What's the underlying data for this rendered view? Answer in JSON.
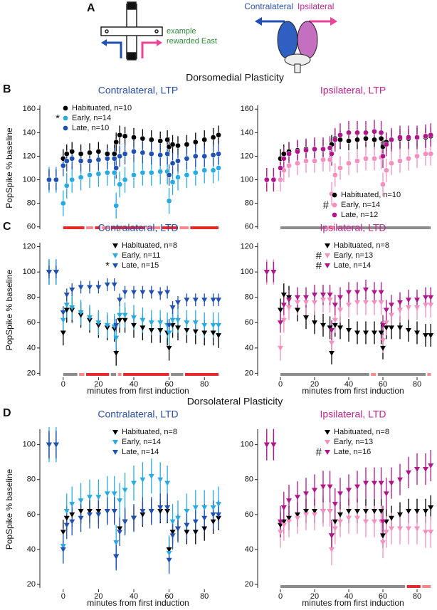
{
  "panel_a": {
    "label": "A",
    "caption": [
      "example",
      "rewarded East"
    ],
    "contralateral": "Contralateral",
    "ipsilateral": "Ipsilateral"
  },
  "chart_data": [
    {
      "type": "line",
      "panel": "B",
      "section": "Dorsomedial Plasticity",
      "title": "Contralateral, LTP",
      "title_color": "#2a4fa8",
      "ylabel": "PopSpike % baseline",
      "marker": "circle",
      "legend": "upper left",
      "x": [
        -8,
        -4,
        0,
        2,
        5,
        10,
        15,
        20,
        25,
        29,
        30,
        32,
        35,
        40,
        45,
        50,
        55,
        59,
        60,
        62,
        65,
        70,
        75,
        80,
        85,
        88
      ],
      "xlim": [
        -10,
        90
      ],
      "ylim": [
        58,
        162
      ],
      "yticks": [
        60,
        80,
        100,
        120,
        140,
        160
      ],
      "series": [
        {
          "name": "Habituated, n=10",
          "color": "#000000",
          "error": 8,
          "values": [
            100,
            100,
            118,
            122,
            124,
            122,
            123,
            124,
            122,
            122,
            132,
            138,
            137,
            136,
            135,
            134,
            133,
            134,
            128,
            130,
            129,
            130,
            132,
            134,
            136,
            138
          ]
        },
        {
          "name": "Early, n=14",
          "color": "#29abe2",
          "flag": "*",
          "error": 11,
          "values": [
            100,
            100,
            80,
            95,
            100,
            102,
            104,
            105,
            106,
            106,
            78,
            96,
            100,
            104,
            106,
            106,
            107,
            107,
            82,
            98,
            102,
            104,
            106,
            108,
            108,
            110
          ]
        },
        {
          "name": "Late, n=10",
          "color": "#2050b0",
          "error": 9,
          "values": [
            100,
            100,
            112,
            116,
            118,
            116,
            116,
            117,
            118,
            118,
            110,
            120,
            122,
            124,
            123,
            122,
            121,
            122,
            104,
            114,
            116,
            118,
            120,
            120,
            121,
            122
          ]
        }
      ],
      "sig_bars": [
        {
          "x": [
            0,
            12
          ],
          "color": "#e8282f"
        },
        {
          "x": [
            13,
            17
          ],
          "color": "#f4888a"
        },
        {
          "x": [
            18,
            21
          ],
          "color": "#e8282f"
        },
        {
          "x": [
            22,
            26
          ],
          "color": "#f4888a"
        },
        {
          "x": [
            27,
            46
          ],
          "color": "#e8282f"
        },
        {
          "x": [
            47,
            55
          ],
          "color": "#f4888a"
        },
        {
          "x": [
            56,
            65
          ],
          "color": "#e8282f"
        },
        {
          "x": [
            66,
            71
          ],
          "color": "#f4888a"
        },
        {
          "x": [
            72,
            88
          ],
          "color": "#e8282f"
        }
      ]
    },
    {
      "type": "line",
      "title": "Ipsilateral, LTP",
      "title_color": "#c0268f",
      "marker": "circle",
      "legend": "lower right",
      "x": [
        -8,
        -4,
        0,
        2,
        5,
        10,
        15,
        20,
        25,
        29,
        30,
        32,
        35,
        40,
        45,
        50,
        55,
        59,
        60,
        62,
        65,
        70,
        75,
        80,
        85,
        88
      ],
      "xlim": [
        -10,
        90
      ],
      "ylim": [
        58,
        162
      ],
      "yticks": [
        60,
        80,
        100,
        120,
        140,
        160
      ],
      "series": [
        {
          "name": "Habituated, n=10",
          "color": "#000000",
          "error": 8,
          "values": [
            100,
            100,
            118,
            122,
            124,
            125,
            126,
            126,
            126,
            127,
            130,
            135,
            134,
            133,
            134,
            135,
            134,
            135,
            128,
            132,
            134,
            135,
            135,
            136,
            136,
            137
          ]
        },
        {
          "name": "Early, n=14",
          "color": "#f48fc0",
          "flag": "#",
          "error": 10,
          "values": [
            100,
            100,
            100,
            108,
            112,
            114,
            116,
            116,
            117,
            117,
            88,
            104,
            110,
            114,
            116,
            118,
            118,
            119,
            96,
            108,
            114,
            116,
            118,
            120,
            122,
            122
          ]
        },
        {
          "name": "Late, n=12",
          "color": "#b0168a",
          "error": 10,
          "values": [
            100,
            100,
            110,
            118,
            122,
            124,
            125,
            126,
            126,
            127,
            122,
            134,
            138,
            140,
            140,
            140,
            141,
            140,
            120,
            130,
            134,
            136,
            136,
            136,
            137,
            138
          ]
        }
      ],
      "sig_bars": [
        {
          "x": [
            0,
            27
          ],
          "color": "#8c8c8c"
        },
        {
          "x": [
            28,
            32
          ],
          "color": "#f4888a"
        },
        {
          "x": [
            33,
            88
          ],
          "color": "#8c8c8c"
        }
      ]
    },
    {
      "type": "line",
      "panel": "C",
      "title": "Contralateral, LTD",
      "title_color": "#2a4fa8",
      "ylabel": "PopSpike % baseline",
      "xlabel": "minutes from first induction",
      "marker": "triangle-down",
      "legend": "upper right",
      "x": [
        -8,
        -4,
        0,
        2,
        5,
        10,
        15,
        20,
        25,
        29,
        30,
        32,
        35,
        40,
        45,
        50,
        55,
        59,
        60,
        62,
        65,
        70,
        75,
        80,
        85,
        88
      ],
      "xlim": [
        -10,
        90
      ],
      "ylim": [
        18,
        122
      ],
      "yticks": [
        20,
        40,
        60,
        80,
        100,
        120
      ],
      "xticks": [
        0,
        20,
        40,
        60,
        80
      ],
      "series": [
        {
          "name": "Habituated, n=8",
          "color": "#000000",
          "error": 10,
          "values": [
            100,
            100,
            52,
            70,
            70,
            66,
            62,
            58,
            56,
            55,
            36,
            62,
            62,
            58,
            56,
            54,
            54,
            52,
            40,
            58,
            56,
            54,
            53,
            52,
            52,
            50
          ]
        },
        {
          "name": "Early, n=11",
          "color": "#29abe2",
          "error": 10,
          "values": [
            100,
            100,
            62,
            74,
            72,
            68,
            64,
            60,
            58,
            57,
            48,
            66,
            66,
            64,
            62,
            60,
            60,
            58,
            52,
            62,
            62,
            60,
            60,
            58,
            58,
            58
          ]
        },
        {
          "name": "Late, n=15",
          "color": "#2050b0",
          "flag": "*",
          "error": 5,
          "values": [
            100,
            100,
            68,
            82,
            86,
            88,
            88,
            88,
            90,
            90,
            58,
            78,
            84,
            84,
            84,
            84,
            83,
            84,
            58,
            72,
            76,
            78,
            78,
            78,
            78,
            78
          ]
        }
      ],
      "sig_bars": [
        {
          "x": [
            0,
            8
          ],
          "color": "#8c8c8c"
        },
        {
          "x": [
            9,
            12
          ],
          "color": "#f4888a"
        },
        {
          "x": [
            13,
            26
          ],
          "color": "#e8282f"
        },
        {
          "x": [
            27,
            30
          ],
          "color": "#8c8c8c"
        },
        {
          "x": [
            31,
            33
          ],
          "color": "#f4888a"
        },
        {
          "x": [
            34,
            60
          ],
          "color": "#e8282f"
        },
        {
          "x": [
            61,
            68
          ],
          "color": "#8c8c8c"
        },
        {
          "x": [
            69,
            88
          ],
          "color": "#e8282f"
        }
      ]
    },
    {
      "type": "line",
      "title": "Ipsilateral, LTD",
      "title_color": "#c0268f",
      "xlabel": "minutes from first induction",
      "marker": "triangle-down",
      "legend": "upper right",
      "x": [
        -8,
        -4,
        0,
        2,
        5,
        10,
        15,
        20,
        25,
        29,
        30,
        32,
        35,
        40,
        45,
        50,
        55,
        59,
        60,
        62,
        65,
        70,
        75,
        80,
        85,
        88
      ],
      "xlim": [
        -10,
        90
      ],
      "ylim": [
        18,
        122
      ],
      "yticks": [
        20,
        40,
        60,
        80,
        100,
        120
      ],
      "xticks": [
        0,
        20,
        40,
        60,
        80
      ],
      "series": [
        {
          "name": "Habituated, n=8",
          "color": "#000000",
          "error": 9,
          "values": [
            100,
            100,
            70,
            82,
            80,
            70,
            64,
            60,
            58,
            56,
            36,
            58,
            56,
            54,
            52,
            52,
            52,
            52,
            40,
            56,
            56,
            56,
            54,
            52,
            50,
            50
          ]
        },
        {
          "name": "Early, n=13",
          "color": "#f48fc0",
          "flag": "#",
          "error": 10,
          "values": [
            100,
            100,
            40,
            62,
            72,
            76,
            76,
            76,
            78,
            78,
            44,
            62,
            70,
            74,
            76,
            76,
            76,
            76,
            46,
            60,
            66,
            70,
            72,
            72,
            74,
            74
          ]
        },
        {
          "name": "Late, n=14",
          "color": "#b0168a",
          "flag": "#",
          "error": 8,
          "values": [
            100,
            100,
            60,
            74,
            78,
            80,
            80,
            82,
            82,
            82,
            54,
            74,
            80,
            84,
            84,
            86,
            84,
            84,
            58,
            70,
            74,
            76,
            78,
            78,
            80,
            80
          ]
        }
      ],
      "sig_bars": [
        {
          "x": [
            0,
            52
          ],
          "color": "#8c8c8c"
        },
        {
          "x": [
            53,
            56
          ],
          "color": "#f4888a"
        },
        {
          "x": [
            57,
            85
          ],
          "color": "#8c8c8c"
        },
        {
          "x": [
            86,
            88
          ],
          "color": "#f4888a"
        }
      ]
    },
    {
      "type": "line",
      "panel": "D",
      "section": "Dorsolateral Plasticity",
      "title": "Contralateral, LTD",
      "title_color": "#2a4fa8",
      "ylabel": "PopSpike % baseline",
      "xlabel": "minutes from first induction",
      "marker": "triangle-down",
      "legend": "upper right",
      "x": [
        -8,
        -4,
        0,
        2,
        5,
        10,
        15,
        20,
        25,
        29,
        30,
        32,
        35,
        40,
        45,
        50,
        55,
        59,
        60,
        62,
        65,
        70,
        75,
        80,
        85,
        88
      ],
      "xlim": [
        -10,
        90
      ],
      "ylim": [
        18,
        108
      ],
      "yticks": [
        20,
        40,
        60,
        80,
        100
      ],
      "xticks": [
        0,
        20,
        40,
        60,
        80
      ],
      "series": [
        {
          "name": "Habituated, n=8",
          "color": "#000000",
          "error": 7,
          "values": [
            100,
            100,
            50,
            58,
            60,
            62,
            62,
            62,
            62,
            62,
            36,
            52,
            56,
            58,
            60,
            62,
            62,
            62,
            40,
            50,
            52,
            50,
            50,
            52,
            56,
            58
          ]
        },
        {
          "name": "Early, n=14",
          "color": "#29abe2",
          "error": 10,
          "values": [
            100,
            100,
            42,
            62,
            66,
            68,
            70,
            70,
            72,
            72,
            44,
            68,
            74,
            78,
            80,
            82,
            80,
            78,
            38,
            56,
            58,
            62,
            64,
            64,
            64,
            66
          ]
        },
        {
          "name": "Late, n=14",
          "color": "#2050b0",
          "error": 8,
          "values": [
            100,
            100,
            40,
            54,
            56,
            58,
            60,
            60,
            62,
            62,
            36,
            50,
            56,
            58,
            62,
            62,
            64,
            64,
            34,
            48,
            52,
            54,
            56,
            58,
            60,
            60
          ]
        }
      ],
      "sig_bars": []
    },
    {
      "type": "line",
      "title": "Ipsilateral, LTD",
      "title_color": "#c0268f",
      "xlabel": "minutes from first induction",
      "marker": "triangle-down",
      "legend": "upper right",
      "x": [
        -8,
        -4,
        0,
        2,
        5,
        10,
        15,
        20,
        25,
        29,
        30,
        32,
        35,
        40,
        45,
        50,
        55,
        59,
        60,
        62,
        65,
        70,
        75,
        80,
        85,
        88
      ],
      "xlim": [
        -10,
        90
      ],
      "ylim": [
        18,
        108
      ],
      "yticks": [
        20,
        40,
        60,
        80,
        100
      ],
      "xticks": [
        0,
        20,
        40,
        60,
        80
      ],
      "series": [
        {
          "name": "Habituated, n=8",
          "color": "#000000",
          "error": 7,
          "values": [
            100,
            100,
            54,
            56,
            58,
            60,
            62,
            62,
            62,
            62,
            48,
            56,
            60,
            62,
            62,
            62,
            62,
            62,
            48,
            56,
            58,
            60,
            62,
            62,
            62,
            64
          ]
        },
        {
          "name": "Early, n=13",
          "color": "#f48fc0",
          "error": 9,
          "values": [
            100,
            100,
            50,
            54,
            56,
            58,
            60,
            60,
            62,
            62,
            40,
            52,
            56,
            58,
            58,
            56,
            56,
            56,
            44,
            50,
            52,
            52,
            52,
            52,
            50,
            50
          ]
        },
        {
          "name": "Late, n=16",
          "color": "#b0168a",
          "flag": "#",
          "error": 9,
          "values": [
            100,
            100,
            56,
            64,
            68,
            70,
            72,
            74,
            76,
            76,
            48,
            66,
            72,
            74,
            76,
            78,
            78,
            78,
            56,
            72,
            78,
            80,
            84,
            86,
            86,
            88
          ]
        }
      ],
      "sig_bars": [
        {
          "x": [
            0,
            73
          ],
          "color": "#8c8c8c"
        },
        {
          "x": [
            74,
            82
          ],
          "color": "#e8282f"
        },
        {
          "x": [
            83,
            88
          ],
          "color": "#f4888a"
        }
      ]
    }
  ]
}
